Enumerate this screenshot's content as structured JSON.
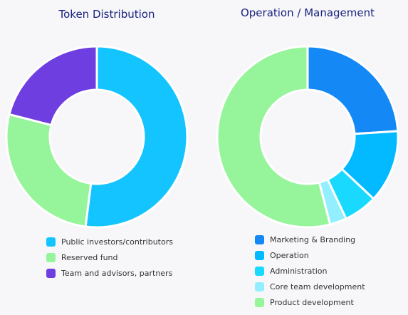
{
  "chart_data": [
    {
      "type": "pie",
      "donut": true,
      "title": "Token Distribution",
      "legend_position": "bottom",
      "slices": [
        {
          "label": "Public investors/contributors",
          "value": 52,
          "color": "#14c4ff"
        },
        {
          "label": "Reserved fund",
          "value": 27,
          "color": "#96f59a"
        },
        {
          "label": "Team and advisors, partners",
          "value": 21,
          "color": "#6e3ee0"
        }
      ],
      "start_angle_deg": 0
    },
    {
      "type": "pie",
      "donut": true,
      "title": "Operation / Management",
      "legend_position": "bottom",
      "slices": [
        {
          "label": "Marketing & Branding",
          "value": 24,
          "color": "#1488f5"
        },
        {
          "label": "Operation",
          "value": 13,
          "color": "#03b9ff"
        },
        {
          "label": "Administration",
          "value": 6,
          "color": "#19d9ff"
        },
        {
          "label": "Core team development",
          "value": 3,
          "color": "#93efff"
        },
        {
          "label": "Product development",
          "value": 54,
          "color": "#96f59a"
        }
      ],
      "start_angle_deg": 0
    }
  ]
}
